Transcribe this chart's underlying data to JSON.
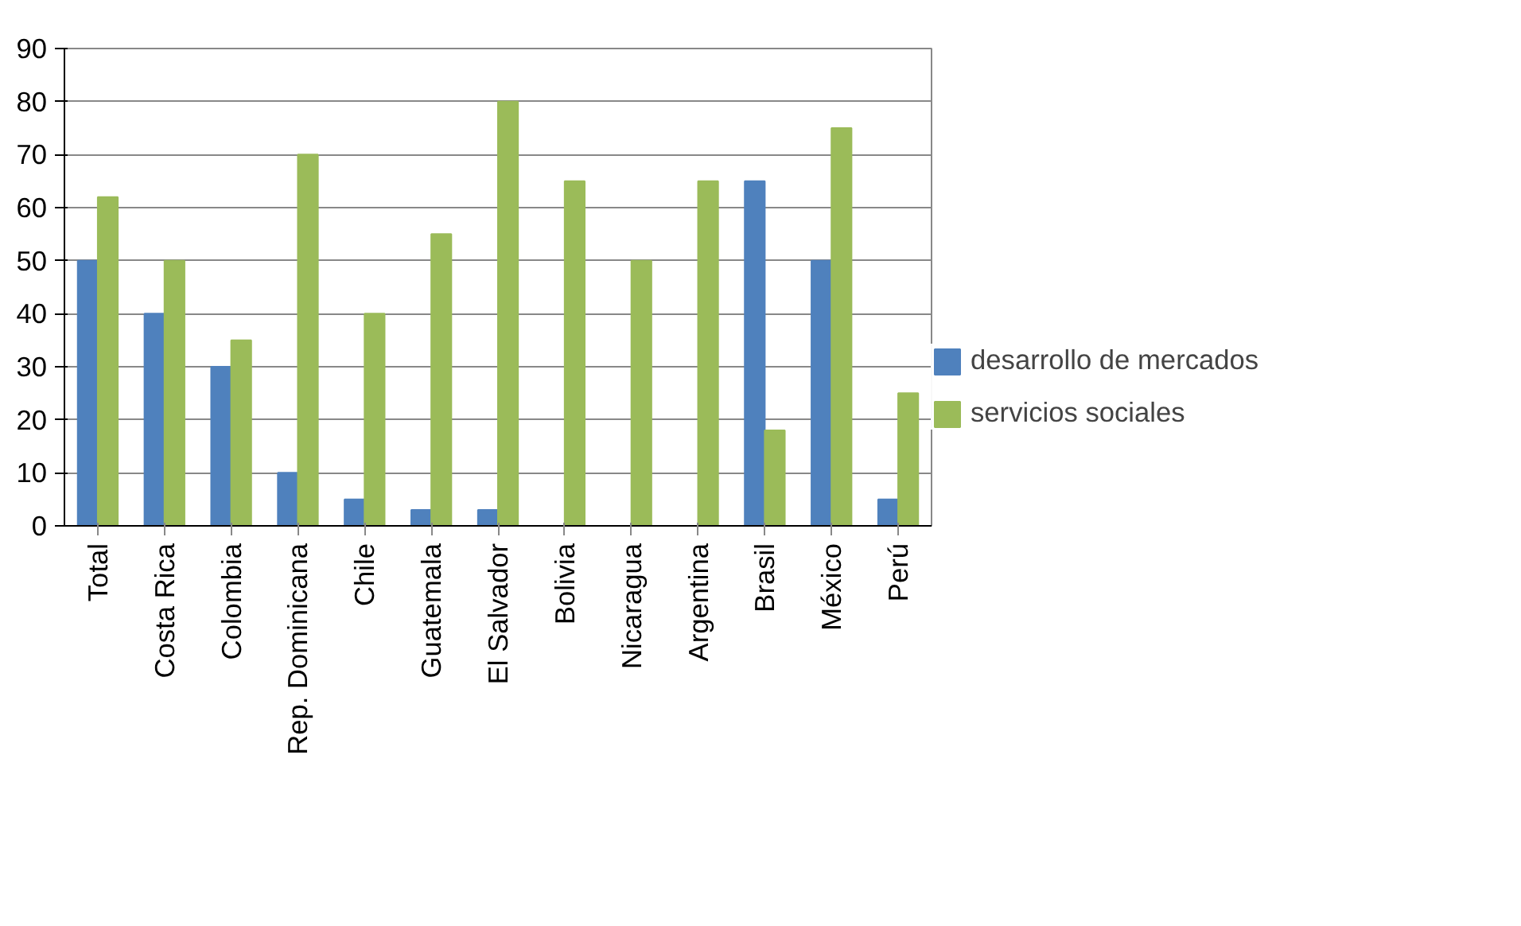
{
  "chart_data": {
    "type": "bar",
    "categories": [
      "Total",
      "Costa Rica",
      "Colombia",
      "Rep. Dominicana",
      "Chile",
      "Guatemala",
      "El Salvador",
      "Bolivia",
      "Nicaragua",
      "Argentina",
      "Brasil",
      "México",
      "Perú"
    ],
    "series": [
      {
        "name": "desarrollo de mercados",
        "color": "#4f81bd",
        "values": [
          50,
          40,
          30,
          10,
          5,
          3,
          3,
          0,
          0,
          0,
          65,
          50,
          5
        ]
      },
      {
        "name": "servicios sociales",
        "color": "#9bbb59",
        "values": [
          62,
          50,
          35,
          70,
          40,
          55,
          80,
          65,
          50,
          65,
          18,
          75,
          25
        ]
      }
    ],
    "ylim": [
      0,
      90
    ],
    "yticks": [
      0,
      10,
      20,
      30,
      40,
      50,
      60,
      70,
      80,
      90
    ],
    "grid": "y",
    "legend": "right"
  }
}
